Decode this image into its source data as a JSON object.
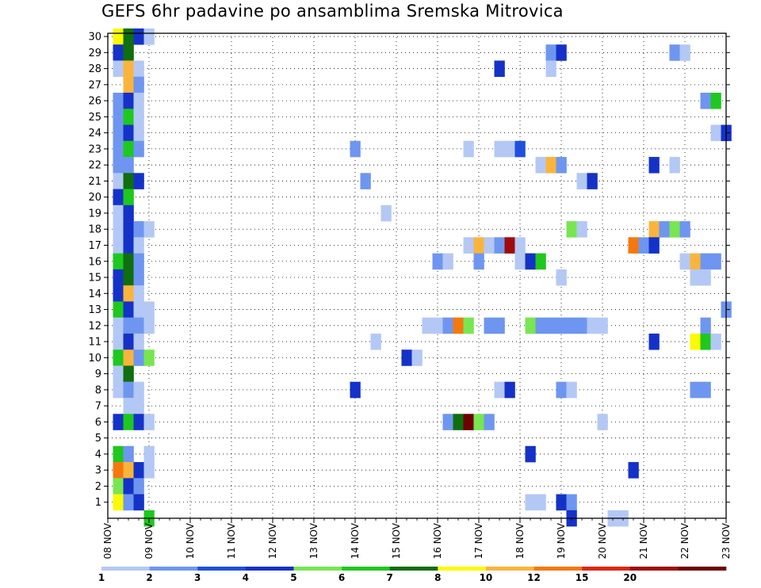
{
  "title": "GEFS 6hr padavine po ansamblima Sremska Mitrovica",
  "chart_data": {
    "type": "heatmap",
    "title": "GEFS 6hr padavine po ansamblima Sremska Mitrovica",
    "xlabel": "",
    "ylabel": "",
    "x_ticks": [
      "08 NOV",
      "09 NOV",
      "10 NOV",
      "11 NOV",
      "12 NOV",
      "13 NOV",
      "14 NOV",
      "15 NOV",
      "16 NOV",
      "17 NOV",
      "18 NOV",
      "19 NOV",
      "20 NOV",
      "21 NOV",
      "22 NOV",
      "23 NOV"
    ],
    "x_range": [
      0,
      15
    ],
    "x_step_days": 0.25,
    "y_range": [
      0,
      30
    ],
    "y_ticks": [
      1,
      2,
      3,
      4,
      5,
      6,
      7,
      8,
      9,
      10,
      11,
      12,
      13,
      14,
      15,
      16,
      17,
      18,
      19,
      20,
      21,
      22,
      23,
      24,
      25,
      26,
      27,
      28,
      29,
      30
    ],
    "grid": true,
    "legend": {
      "placement": "bottom",
      "labels": [
        "1",
        "2",
        "3",
        "4",
        "5",
        "6",
        "7",
        "8",
        "10",
        "12",
        "15",
        "20"
      ],
      "colors": [
        "#b4c8f5",
        "#6e96f0",
        "#1e50dc",
        "#1432c8",
        "#78e650",
        "#1ec81e",
        "#0f6e0f",
        "#fafa00",
        "#fab43c",
        "#f5780f",
        "#dc2814",
        "#a00a0a",
        "#6e0000"
      ]
    },
    "cells": [
      {
        "member": 30,
        "day": 0.25,
        "cat": 7
      },
      {
        "member": 30,
        "day": 0.5,
        "cat": 6
      },
      {
        "member": 30,
        "day": 0.75,
        "cat": 3
      },
      {
        "member": 30,
        "day": 1,
        "cat": 0
      },
      {
        "member": 29,
        "day": 0.25,
        "cat": 3
      },
      {
        "member": 29,
        "day": 0.5,
        "cat": 6
      },
      {
        "member": 29,
        "day": 10.75,
        "cat": 1
      },
      {
        "member": 29,
        "day": 11,
        "cat": 3
      },
      {
        "member": 29,
        "day": 13.75,
        "cat": 1
      },
      {
        "member": 29,
        "day": 14,
        "cat": 0
      },
      {
        "member": 28,
        "day": 0.25,
        "cat": 0
      },
      {
        "member": 28,
        "day": 0.5,
        "cat": 8
      },
      {
        "member": 28,
        "day": 0.75,
        "cat": 0
      },
      {
        "member": 28,
        "day": 9.5,
        "cat": 3
      },
      {
        "member": 28,
        "day": 10.75,
        "cat": 0
      },
      {
        "member": 27,
        "day": 0.5,
        "cat": 8
      },
      {
        "member": 27,
        "day": 0.75,
        "cat": 1
      },
      {
        "member": 26,
        "day": 0.25,
        "cat": 1
      },
      {
        "member": 26,
        "day": 0.5,
        "cat": 3
      },
      {
        "member": 26,
        "day": 0.75,
        "cat": 0
      },
      {
        "member": 26,
        "day": 14.5,
        "cat": 1
      },
      {
        "member": 26,
        "day": 14.75,
        "cat": 5
      },
      {
        "member": 25,
        "day": 0.25,
        "cat": 1
      },
      {
        "member": 25,
        "day": 0.5,
        "cat": 5
      },
      {
        "member": 25,
        "day": 0.75,
        "cat": 0
      },
      {
        "member": 24,
        "day": 0.25,
        "cat": 1
      },
      {
        "member": 24,
        "day": 0.5,
        "cat": 3
      },
      {
        "member": 24,
        "day": 0.75,
        "cat": 0
      },
      {
        "member": 24,
        "day": 14.75,
        "cat": 0
      },
      {
        "member": 24,
        "day": 15,
        "cat": 3
      },
      {
        "member": 23,
        "day": 0.25,
        "cat": 1
      },
      {
        "member": 23,
        "day": 0.5,
        "cat": 5
      },
      {
        "member": 23,
        "day": 0.75,
        "cat": 1
      },
      {
        "member": 23,
        "day": 6,
        "cat": 1
      },
      {
        "member": 23,
        "day": 8.75,
        "cat": 0
      },
      {
        "member": 23,
        "day": 9.5,
        "cat": 0
      },
      {
        "member": 23,
        "day": 9.75,
        "cat": 0
      },
      {
        "member": 23,
        "day": 10,
        "cat": 2
      },
      {
        "member": 22,
        "day": 0.25,
        "cat": 1
      },
      {
        "member": 22,
        "day": 0.5,
        "cat": 1
      },
      {
        "member": 22,
        "day": 10.5,
        "cat": 0
      },
      {
        "member": 22,
        "day": 10.75,
        "cat": 8
      },
      {
        "member": 22,
        "day": 11,
        "cat": 1
      },
      {
        "member": 22,
        "day": 13.25,
        "cat": 3
      },
      {
        "member": 22,
        "day": 13.75,
        "cat": 0
      },
      {
        "member": 21,
        "day": 0.25,
        "cat": 0
      },
      {
        "member": 21,
        "day": 0.5,
        "cat": 6
      },
      {
        "member": 21,
        "day": 0.75,
        "cat": 3
      },
      {
        "member": 21,
        "day": 6.25,
        "cat": 1
      },
      {
        "member": 21,
        "day": 11.5,
        "cat": 0
      },
      {
        "member": 21,
        "day": 11.75,
        "cat": 3
      },
      {
        "member": 20,
        "day": 0.25,
        "cat": 3
      },
      {
        "member": 20,
        "day": 0.5,
        "cat": 5
      },
      {
        "member": 19,
        "day": 0.25,
        "cat": 0
      },
      {
        "member": 19,
        "day": 0.5,
        "cat": 3
      },
      {
        "member": 19,
        "day": 6.75,
        "cat": 0
      },
      {
        "member": 18,
        "day": 0.25,
        "cat": 0
      },
      {
        "member": 18,
        "day": 0.5,
        "cat": 3
      },
      {
        "member": 18,
        "day": 0.75,
        "cat": 1
      },
      {
        "member": 18,
        "day": 1,
        "cat": 0
      },
      {
        "member": 18,
        "day": 11.25,
        "cat": 4
      },
      {
        "member": 18,
        "day": 11.5,
        "cat": 0
      },
      {
        "member": 18,
        "day": 13.25,
        "cat": 8
      },
      {
        "member": 18,
        "day": 13.5,
        "cat": 1
      },
      {
        "member": 18,
        "day": 13.75,
        "cat": 4
      },
      {
        "member": 18,
        "day": 14,
        "cat": 1
      },
      {
        "member": 17,
        "day": 0.25,
        "cat": 0
      },
      {
        "member": 17,
        "day": 0.5,
        "cat": 3
      },
      {
        "member": 17,
        "day": 0.75,
        "cat": 0
      },
      {
        "member": 17,
        "day": 8.75,
        "cat": 0
      },
      {
        "member": 17,
        "day": 9,
        "cat": 8
      },
      {
        "member": 17,
        "day": 9.25,
        "cat": 0
      },
      {
        "member": 17,
        "day": 9.5,
        "cat": 1
      },
      {
        "member": 17,
        "day": 9.75,
        "cat": 11
      },
      {
        "member": 17,
        "day": 10,
        "cat": 0
      },
      {
        "member": 17,
        "day": 12.75,
        "cat": 9
      },
      {
        "member": 17,
        "day": 13,
        "cat": 1
      },
      {
        "member": 17,
        "day": 13.25,
        "cat": 3
      },
      {
        "member": 16,
        "day": 0.25,
        "cat": 5
      },
      {
        "member": 16,
        "day": 0.5,
        "cat": 6
      },
      {
        "member": 16,
        "day": 0.75,
        "cat": 1
      },
      {
        "member": 16,
        "day": 8,
        "cat": 1
      },
      {
        "member": 16,
        "day": 8.25,
        "cat": 0
      },
      {
        "member": 16,
        "day": 9,
        "cat": 1
      },
      {
        "member": 16,
        "day": 10,
        "cat": 0
      },
      {
        "member": 16,
        "day": 10.25,
        "cat": 3
      },
      {
        "member": 16,
        "day": 10.5,
        "cat": 5
      },
      {
        "member": 16,
        "day": 14,
        "cat": 0
      },
      {
        "member": 16,
        "day": 14.25,
        "cat": 8
      },
      {
        "member": 16,
        "day": 14.5,
        "cat": 1
      },
      {
        "member": 16,
        "day": 14.75,
        "cat": 1
      },
      {
        "member": 15,
        "day": 0.25,
        "cat": 3
      },
      {
        "member": 15,
        "day": 0.5,
        "cat": 6
      },
      {
        "member": 15,
        "day": 0.75,
        "cat": 1
      },
      {
        "member": 15,
        "day": 11,
        "cat": 0
      },
      {
        "member": 15,
        "day": 14.25,
        "cat": 0
      },
      {
        "member": 15,
        "day": 14.5,
        "cat": 0
      },
      {
        "member": 14,
        "day": 0.25,
        "cat": 3
      },
      {
        "member": 14,
        "day": 0.5,
        "cat": 8
      },
      {
        "member": 14,
        "day": 0.75,
        "cat": 0
      },
      {
        "member": 13,
        "day": 0.25,
        "cat": 5
      },
      {
        "member": 13,
        "day": 0.5,
        "cat": 3
      },
      {
        "member": 13,
        "day": 0.75,
        "cat": 0
      },
      {
        "member": 13,
        "day": 1,
        "cat": 0
      },
      {
        "member": 13,
        "day": 15,
        "cat": 1
      },
      {
        "member": 12,
        "day": 0.25,
        "cat": 0
      },
      {
        "member": 12,
        "day": 0.5,
        "cat": 1
      },
      {
        "member": 12,
        "day": 0.75,
        "cat": 1
      },
      {
        "member": 12,
        "day": 1,
        "cat": 0
      },
      {
        "member": 12,
        "day": 7.75,
        "cat": 0
      },
      {
        "member": 12,
        "day": 8,
        "cat": 0
      },
      {
        "member": 12,
        "day": 8.25,
        "cat": 1
      },
      {
        "member": 12,
        "day": 8.5,
        "cat": 9
      },
      {
        "member": 12,
        "day": 8.75,
        "cat": 4
      },
      {
        "member": 12,
        "day": 9.25,
        "cat": 1
      },
      {
        "member": 12,
        "day": 9.5,
        "cat": 1
      },
      {
        "member": 12,
        "day": 10.25,
        "cat": 4
      },
      {
        "member": 12,
        "day": 10.5,
        "cat": 1
      },
      {
        "member": 12,
        "day": 10.75,
        "cat": 1
      },
      {
        "member": 12,
        "day": 11,
        "cat": 1
      },
      {
        "member": 12,
        "day": 11.25,
        "cat": 1
      },
      {
        "member": 12,
        "day": 11.5,
        "cat": 1
      },
      {
        "member": 12,
        "day": 11.75,
        "cat": 0
      },
      {
        "member": 12,
        "day": 12,
        "cat": 0
      },
      {
        "member": 12,
        "day": 14.5,
        "cat": 1
      },
      {
        "member": 11,
        "day": 0.25,
        "cat": 0
      },
      {
        "member": 11,
        "day": 0.5,
        "cat": 3
      },
      {
        "member": 11,
        "day": 0.75,
        "cat": 0
      },
      {
        "member": 11,
        "day": 6.5,
        "cat": 0
      },
      {
        "member": 11,
        "day": 13.25,
        "cat": 3
      },
      {
        "member": 11,
        "day": 14.25,
        "cat": 7
      },
      {
        "member": 11,
        "day": 14.5,
        "cat": 5
      },
      {
        "member": 11,
        "day": 14.75,
        "cat": 0
      },
      {
        "member": 10,
        "day": 0.25,
        "cat": 5
      },
      {
        "member": 10,
        "day": 0.5,
        "cat": 8
      },
      {
        "member": 10,
        "day": 0.75,
        "cat": 1
      },
      {
        "member": 10,
        "day": 1,
        "cat": 4
      },
      {
        "member": 10,
        "day": 7.25,
        "cat": 3
      },
      {
        "member": 10,
        "day": 7.5,
        "cat": 0
      },
      {
        "member": 9,
        "day": 0.25,
        "cat": 0
      },
      {
        "member": 9,
        "day": 0.5,
        "cat": 6
      },
      {
        "member": 8,
        "day": 0.25,
        "cat": 0
      },
      {
        "member": 8,
        "day": 0.5,
        "cat": 1
      },
      {
        "member": 8,
        "day": 0.75,
        "cat": 0
      },
      {
        "member": 8,
        "day": 6,
        "cat": 3
      },
      {
        "member": 8,
        "day": 9.5,
        "cat": 0
      },
      {
        "member": 8,
        "day": 9.75,
        "cat": 3
      },
      {
        "member": 8,
        "day": 11,
        "cat": 1
      },
      {
        "member": 8,
        "day": 11.25,
        "cat": 0
      },
      {
        "member": 8,
        "day": 14.25,
        "cat": 1
      },
      {
        "member": 8,
        "day": 14.5,
        "cat": 1
      },
      {
        "member": 7,
        "day": 0.5,
        "cat": 0
      },
      {
        "member": 7,
        "day": 0.75,
        "cat": 0
      },
      {
        "member": 6,
        "day": 0.25,
        "cat": 3
      },
      {
        "member": 6,
        "day": 0.5,
        "cat": 5
      },
      {
        "member": 6,
        "day": 0.75,
        "cat": 3
      },
      {
        "member": 6,
        "day": 1,
        "cat": 0
      },
      {
        "member": 6,
        "day": 8.25,
        "cat": 1
      },
      {
        "member": 6,
        "day": 8.5,
        "cat": 6
      },
      {
        "member": 6,
        "day": 8.75,
        "cat": 12
      },
      {
        "member": 6,
        "day": 9,
        "cat": 4
      },
      {
        "member": 6,
        "day": 9.25,
        "cat": 1
      },
      {
        "member": 6,
        "day": 12,
        "cat": 0
      },
      {
        "member": 4,
        "day": 0.25,
        "cat": 5
      },
      {
        "member": 4,
        "day": 0.5,
        "cat": 1
      },
      {
        "member": 4,
        "day": 1,
        "cat": 0
      },
      {
        "member": 4,
        "day": 10.25,
        "cat": 3
      },
      {
        "member": 3,
        "day": 0.25,
        "cat": 9
      },
      {
        "member": 3,
        "day": 0.5,
        "cat": 8
      },
      {
        "member": 3,
        "day": 0.75,
        "cat": 3
      },
      {
        "member": 3,
        "day": 1,
        "cat": 0
      },
      {
        "member": 3,
        "day": 12.75,
        "cat": 3
      },
      {
        "member": 2,
        "day": 0.25,
        "cat": 4
      },
      {
        "member": 2,
        "day": 0.5,
        "cat": 3
      },
      {
        "member": 2,
        "day": 0.75,
        "cat": 1
      },
      {
        "member": 1,
        "day": 0.25,
        "cat": 7
      },
      {
        "member": 1,
        "day": 0.5,
        "cat": 1
      },
      {
        "member": 1,
        "day": 0.75,
        "cat": 3
      },
      {
        "member": 1,
        "day": 10.25,
        "cat": 0
      },
      {
        "member": 1,
        "day": 10.5,
        "cat": 0
      },
      {
        "member": 1,
        "day": 11,
        "cat": 3
      },
      {
        "member": 1,
        "day": 11.25,
        "cat": 1
      },
      {
        "member": 0,
        "day": 1,
        "cat": 5
      },
      {
        "member": 0,
        "day": 11.25,
        "cat": 3
      },
      {
        "member": 0,
        "day": 12.25,
        "cat": 0
      },
      {
        "member": 0,
        "day": 12.5,
        "cat": 0
      }
    ]
  }
}
